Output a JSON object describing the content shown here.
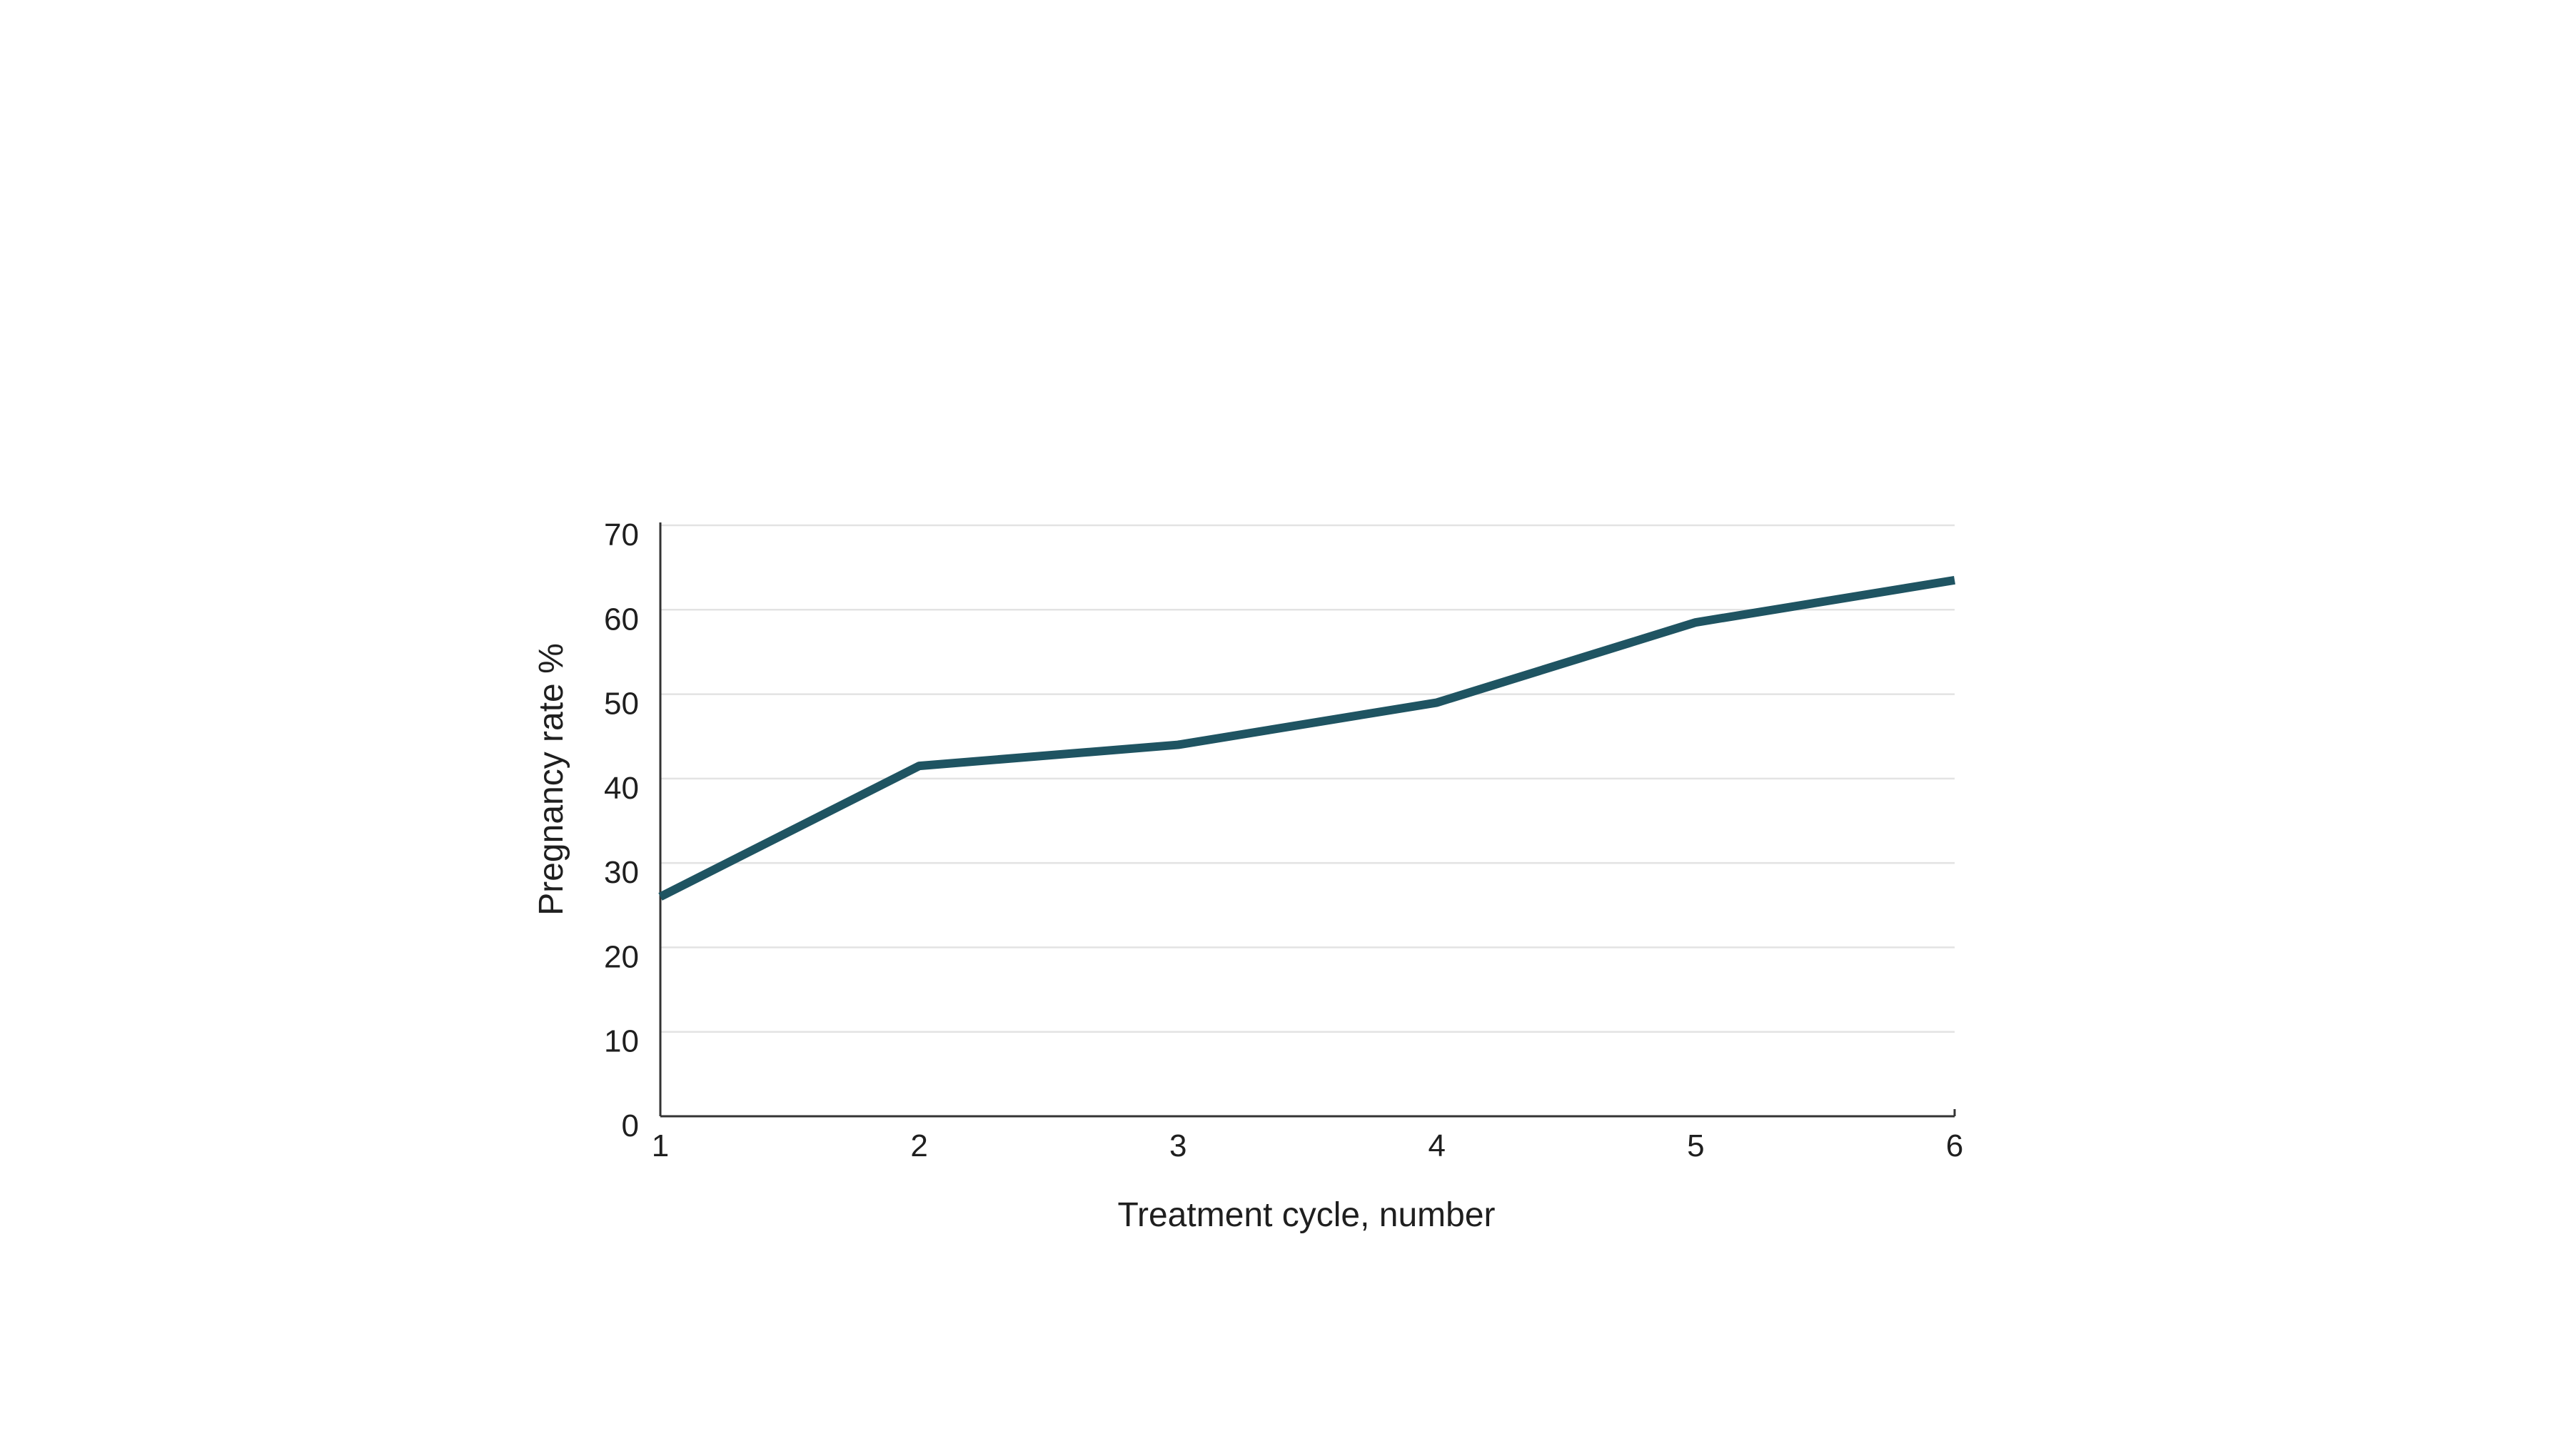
{
  "chart_data": {
    "type": "line",
    "title": "",
    "xlabel": "Treatment cycle, number",
    "ylabel": "Pregnancy rate %",
    "x": [
      1,
      2,
      3,
      4,
      5,
      6
    ],
    "x_ticks": [
      "1",
      "2",
      "3",
      "4",
      "5",
      "6"
    ],
    "y_ticks": [
      "0",
      "10",
      "20",
      "30",
      "40",
      "50",
      "60",
      "70"
    ],
    "ylim": [
      0,
      70
    ],
    "grid": true,
    "legend": "none",
    "series": [
      {
        "values": [
          26,
          41.5,
          44,
          49,
          58.5,
          63.5
        ],
        "color": "#1f5462"
      }
    ]
  }
}
